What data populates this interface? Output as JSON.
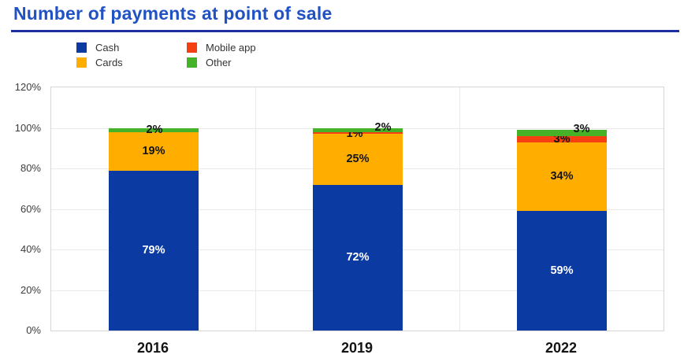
{
  "header": {
    "title": "Number of payments at point of sale"
  },
  "colors": {
    "title_text": "#2152C3",
    "title_rule": "#1B2FA0",
    "grid_inner": "#E9E9E9",
    "plot_border": "#D6D6D6",
    "tick_text": "#3C3C3C",
    "category_text": "#141414",
    "background": "#FFFFFF"
  },
  "chart_data": {
    "type": "bar",
    "stacked": true,
    "title": "Number of payments at point of sale",
    "categories": [
      "2016",
      "2019",
      "2022"
    ],
    "series": [
      {
        "name": "Cash",
        "color": "#0B3AA2",
        "label_color": "#FFFFFF",
        "values": [
          79,
          72,
          59
        ],
        "label_dx": [
          0,
          0,
          0
        ],
        "label_dy": [
          0,
          0,
          0
        ]
      },
      {
        "name": "Cards",
        "color": "#FFAE00",
        "label_color": "#141414",
        "values": [
          19,
          25,
          34
        ],
        "label_dx": [
          0,
          0,
          0
        ],
        "label_dy": [
          0,
          0,
          0
        ]
      },
      {
        "name": "Mobile app",
        "color": "#F54111",
        "label_color": "#141414",
        "values": [
          0,
          1,
          3
        ],
        "label_dx": [
          0,
          -4,
          0
        ],
        "label_dy": [
          0,
          1,
          0
        ]
      },
      {
        "name": "Other",
        "color": "#46B228",
        "label_color": "#141414",
        "values": [
          2,
          2,
          3
        ],
        "label_dx": [
          1,
          32,
          25
        ],
        "label_dy": [
          0,
          -3,
          -5
        ]
      }
    ],
    "label_suffix": "%",
    "y_axis": {
      "min": 0,
      "max": 120,
      "step": 20,
      "tick_labels": [
        "0%",
        "20%",
        "40%",
        "60%",
        "80%",
        "100%",
        "120%"
      ]
    },
    "grid": true,
    "legend_position": "top-left",
    "legend_columns": 2
  }
}
